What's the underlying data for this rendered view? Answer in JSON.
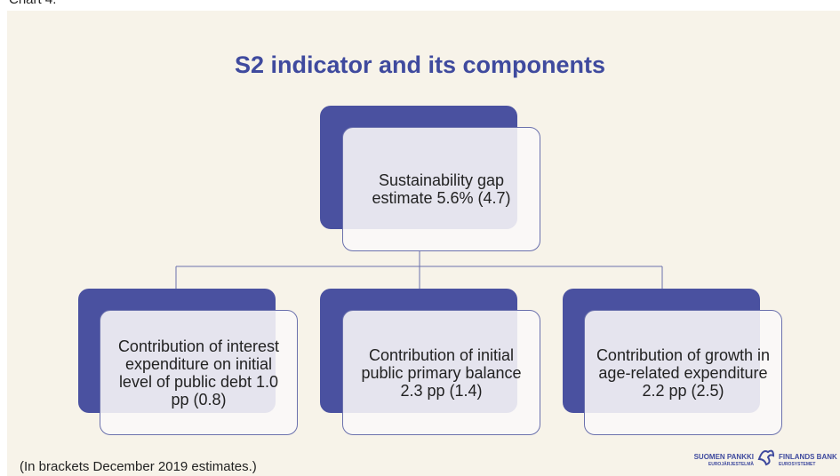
{
  "chart_label": "Chart 4.",
  "title": "S2 indicator and its components",
  "root": {
    "label": "Sustainability gap estimate 5.6% (4.7)"
  },
  "children": [
    {
      "label": "Contribution of interest expenditure on initial level of public debt 1.0 pp (0.8)"
    },
    {
      "label": "Contribution of initial public primary balance 2.3 pp (1.4)"
    },
    {
      "label": "Contribution of growth in age-related expenditure 2.2 pp (2.5)"
    }
  ],
  "footnote": "(In brackets December 2019 estimates.)",
  "logo": {
    "left_top": "SUOMEN PANKKI",
    "left_bottom": "EUROJÄRJESTELMÄ",
    "right_top": "FINLANDS BANK",
    "right_bottom": "EUROSYSTEMET"
  }
}
